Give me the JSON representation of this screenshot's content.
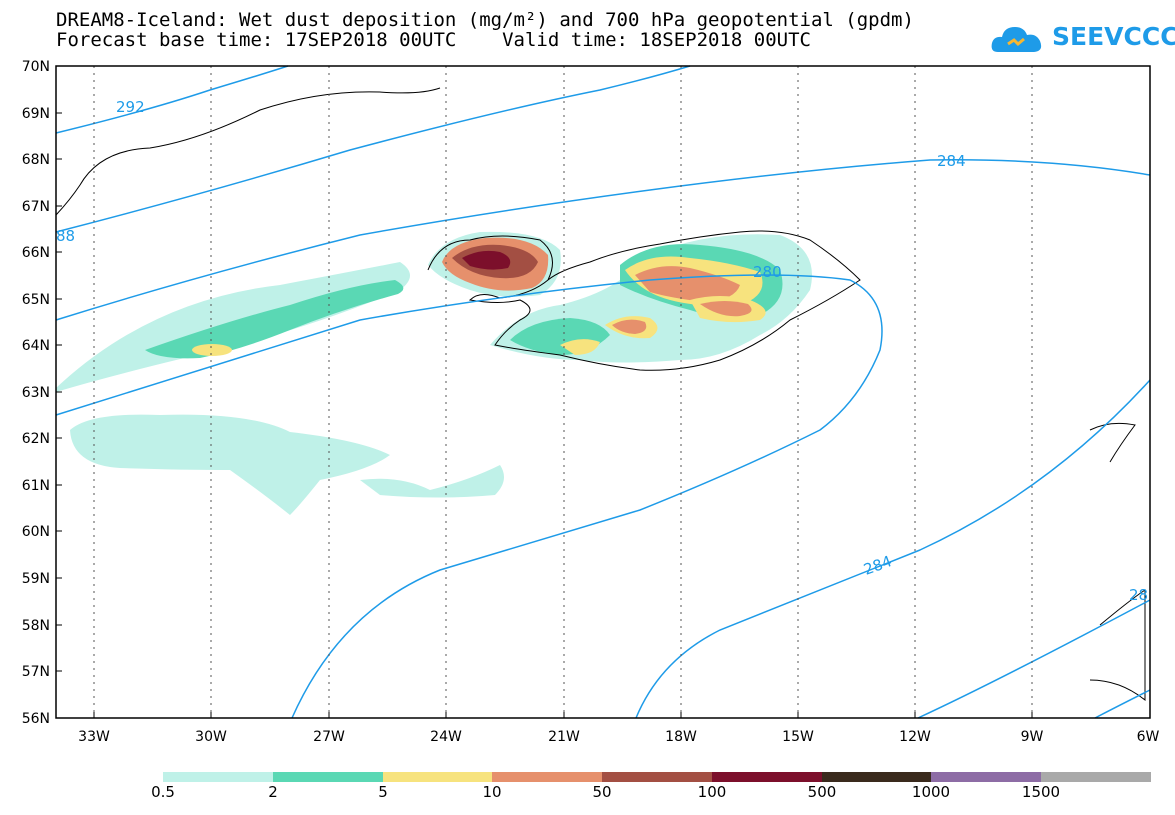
{
  "title": {
    "line1": "DREAM8-Iceland: Wet dust deposition (mg/m²) and 700 hPa geopotential (gpdm)",
    "line2": "Forecast base time: 17SEP2018 00UTC    Valid time: 18SEP2018 00UTC"
  },
  "logo": {
    "text": "SEEVCCC",
    "icon": "cloud-icon",
    "color": "#1e9be8"
  },
  "map": {
    "lat_labels": [
      "70N",
      "69N",
      "68N",
      "67N",
      "66N",
      "65N",
      "64N",
      "63N",
      "62N",
      "61N",
      "60N",
      "59N",
      "58N",
      "57N",
      "56N"
    ],
    "lon_labels": [
      "33W",
      "30W",
      "27W",
      "24W",
      "21W",
      "18W",
      "15W",
      "12W",
      "9W",
      "6W"
    ],
    "contour_labels": [
      "292",
      "88",
      "284",
      "280",
      "284",
      "28"
    ],
    "contour_color": "#1e9be8"
  },
  "colorbar": {
    "labels": [
      "0.5",
      "2",
      "5",
      "10",
      "50",
      "100",
      "500",
      "1000",
      "1500"
    ],
    "colors": [
      "#bff1e8",
      "#5ad8b4",
      "#f7e37e",
      "#e6906c",
      "#a34f43",
      "#7c0f2b",
      "#3a2a1d",
      "#8d6ca5",
      "#a9a9a9"
    ]
  }
}
